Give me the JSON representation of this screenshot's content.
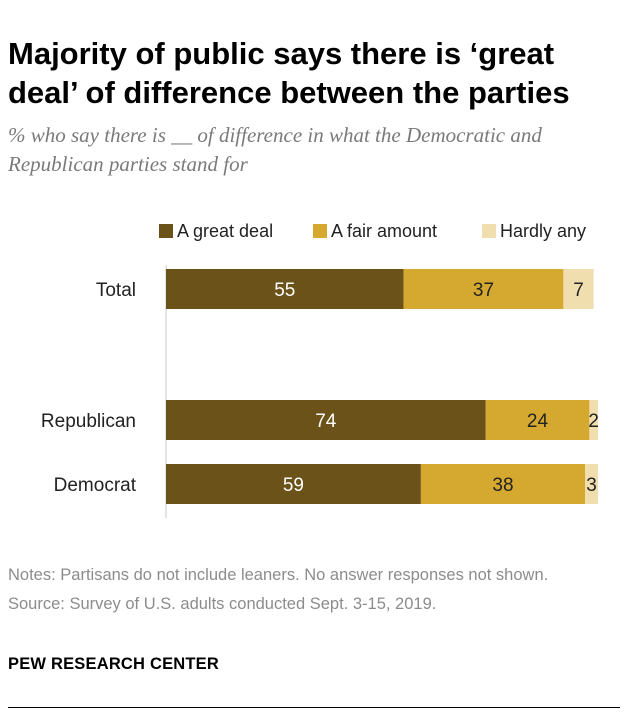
{
  "title": "Majority of public says there is ‘great deal’ of difference between the parties",
  "subtitle": "% who say there is __ of difference in what the Democratic and Republican parties stand for",
  "notes": "Notes: Partisans do not include leaners. No answer responses not shown.",
  "source": "Source: Survey of U.S. adults conducted Sept. 3-15, 2019.",
  "brand": "PEW RESEARCH CENTER",
  "colors": {
    "great_deal": "#6b5218",
    "fair_amount": "#d5a92f",
    "hardly_any": "#f0deae",
    "axis": "#dcdcdc"
  },
  "chart_data": {
    "type": "bar",
    "orientation": "horizontal",
    "stacked": true,
    "categories": [
      "Total",
      "Republican",
      "Democrat"
    ],
    "series": [
      {
        "name": "A great deal",
        "values": [
          55,
          74,
          59
        ]
      },
      {
        "name": "A fair amount",
        "values": [
          37,
          24,
          38
        ]
      },
      {
        "name": "Hardly any",
        "values": [
          7,
          2,
          3
        ]
      }
    ],
    "xlim": [
      0,
      100
    ],
    "legend": "top-right",
    "grid": false
  }
}
